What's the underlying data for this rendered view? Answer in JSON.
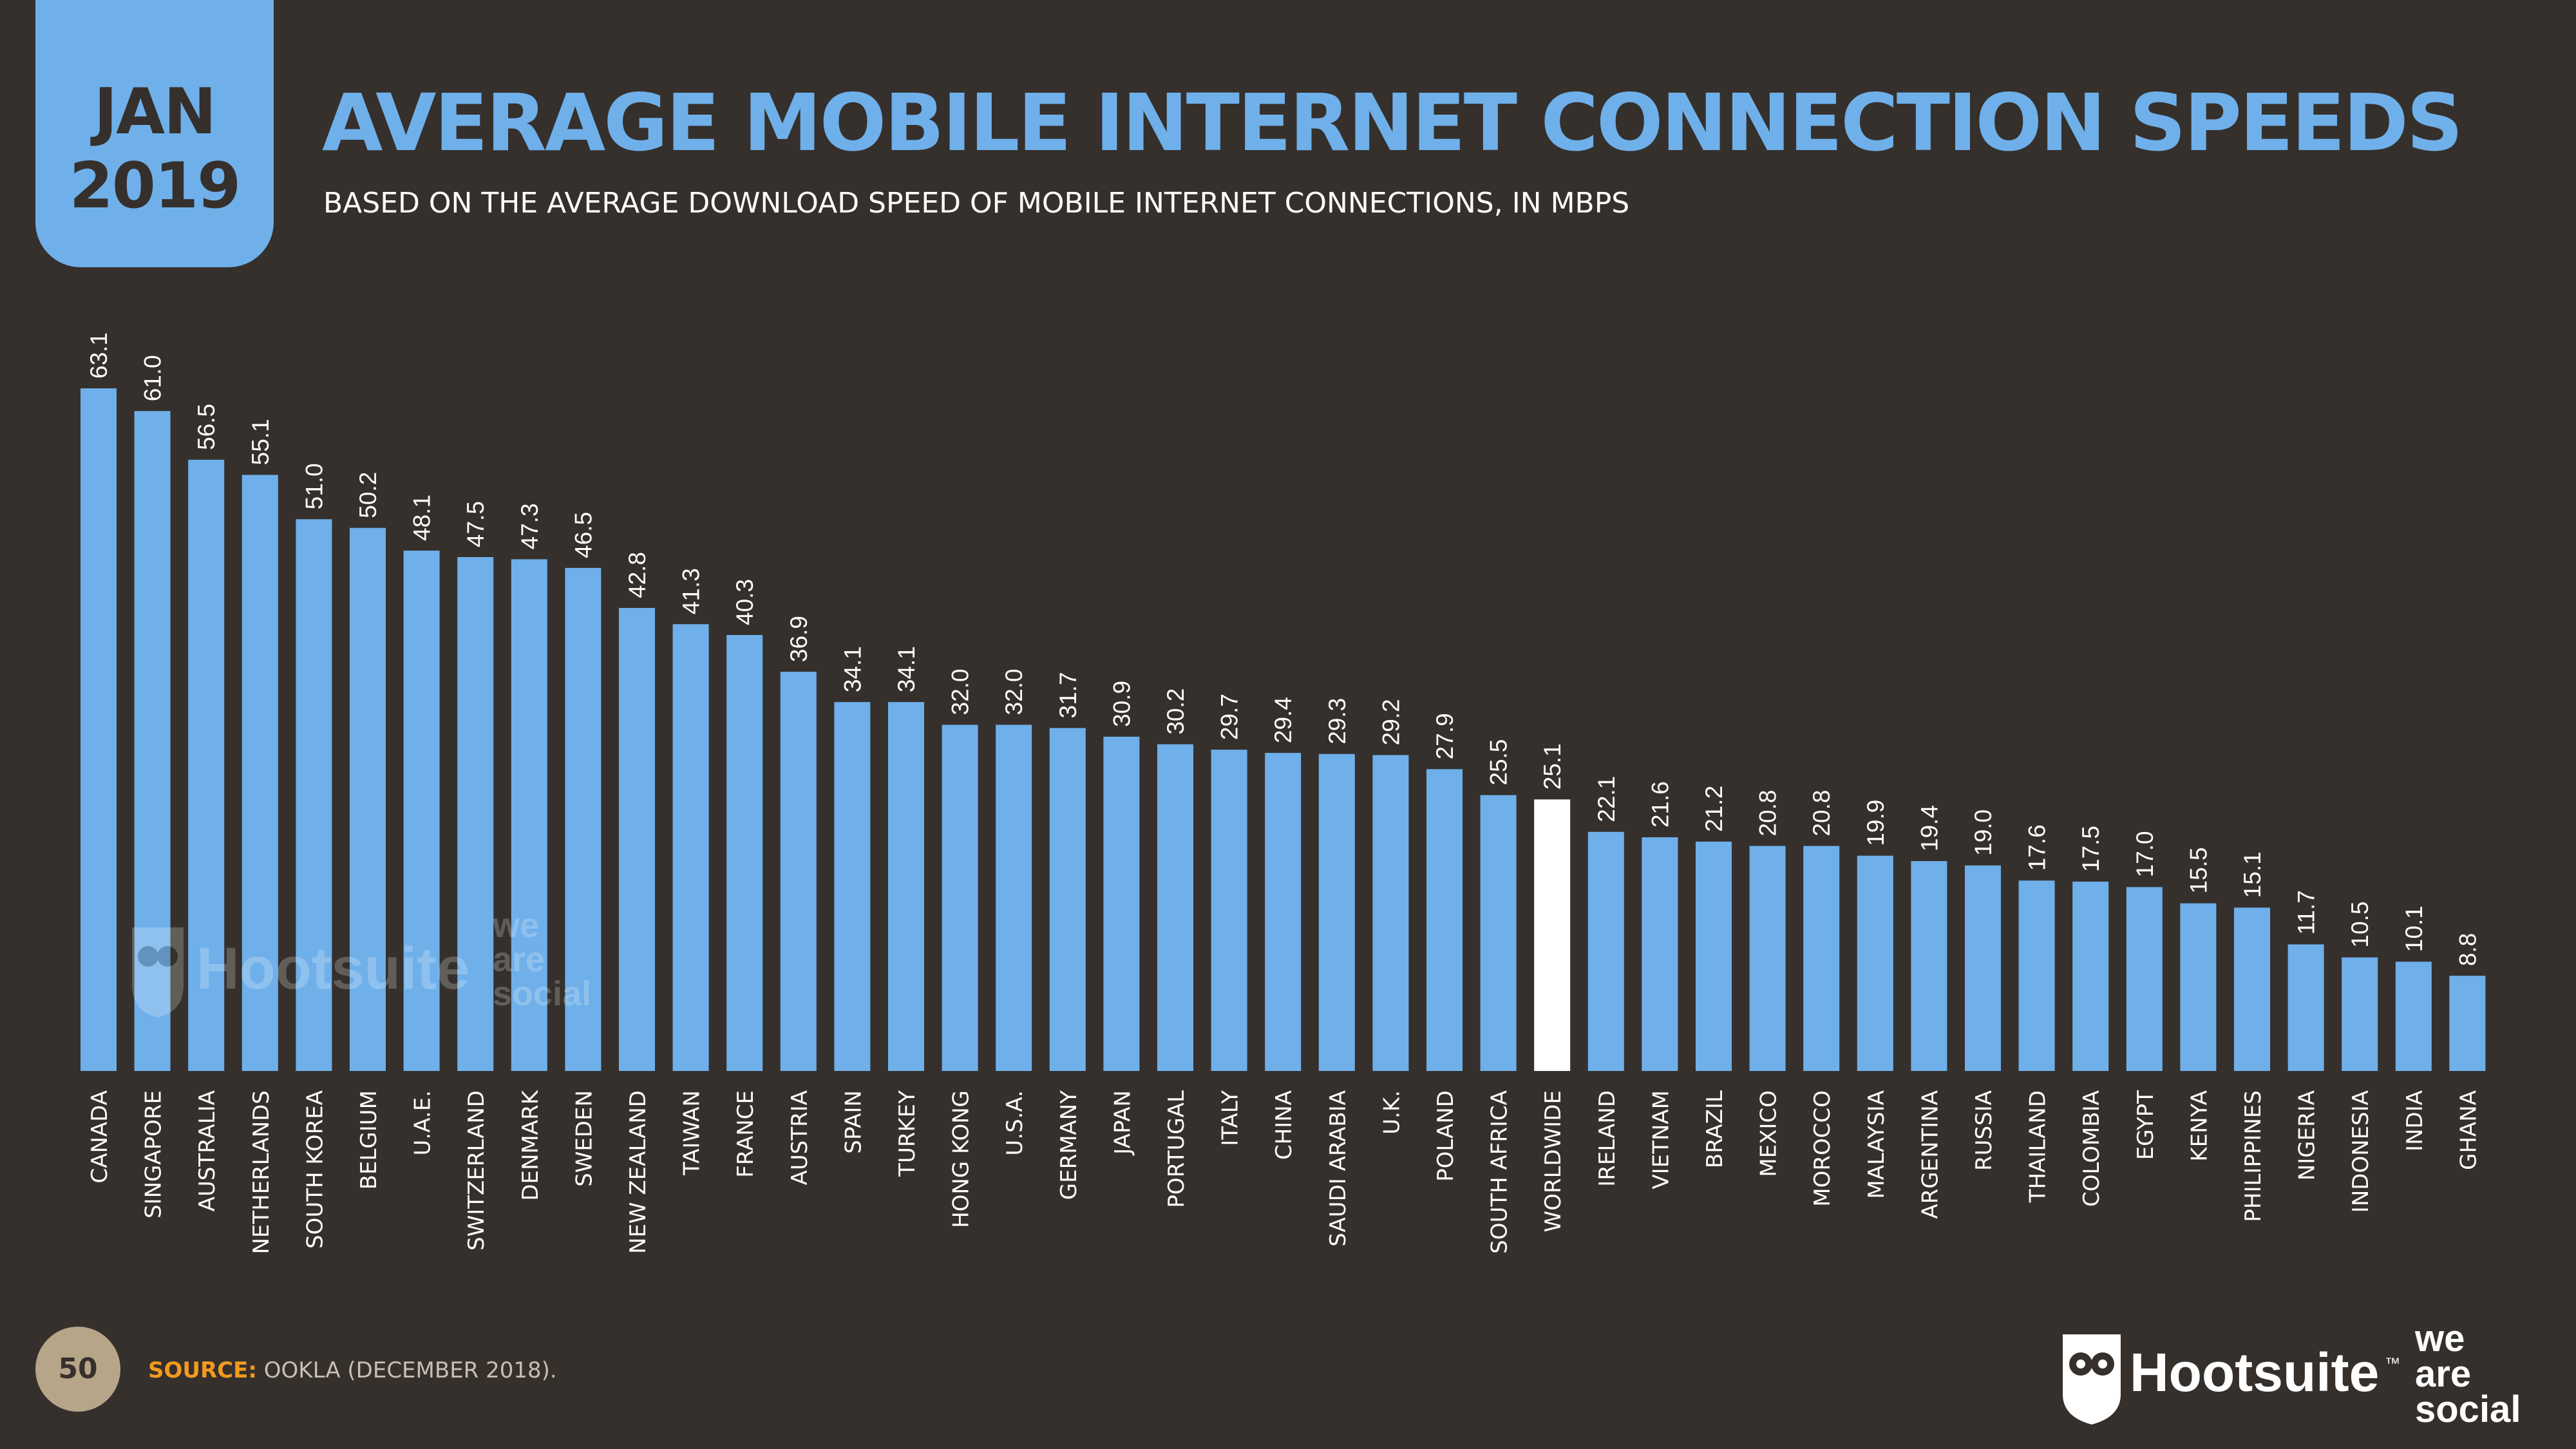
{
  "header": {
    "month": "JAN",
    "year": "2019",
    "title": "AVERAGE MOBILE INTERNET CONNECTION SPEEDS",
    "subtitle": "BASED ON THE AVERAGE DOWNLOAD SPEED OF MOBILE INTERNET CONNECTIONS, IN MBPS"
  },
  "footer": {
    "page_number": "50",
    "source_label": "SOURCE:",
    "source_text": "OOKLA (DECEMBER 2018).",
    "brand_hootsuite": "Hootsuite",
    "brand_tm": "™",
    "brand_was_1": "we",
    "brand_was_2": "are",
    "brand_was_3": "social"
  },
  "colors": {
    "background": "#35302c",
    "bar": "#6fb0ea",
    "highlight_bar": "#ffffff",
    "accent_orange": "#f39a1f",
    "title": "#6fb0ea"
  },
  "chart_data": {
    "type": "bar",
    "categories": [
      "CANADA",
      "SINGAPORE",
      "AUSTRALIA",
      "NETHERLANDS",
      "SOUTH KOREA",
      "BELGIUM",
      "U.A.E.",
      "SWITZERLAND",
      "DENMARK",
      "SWEDEN",
      "NEW ZEALAND",
      "TAIWAN",
      "FRANCE",
      "AUSTRIA",
      "SPAIN",
      "TURKEY",
      "HONG KONG",
      "U.S.A.",
      "GERMANY",
      "JAPAN",
      "PORTUGAL",
      "ITALY",
      "CHINA",
      "SAUDI ARABIA",
      "U.K.",
      "POLAND",
      "SOUTH AFRICA",
      "WORLDWIDE",
      "IRELAND",
      "VIETNAM",
      "BRAZIL",
      "MEXICO",
      "MOROCCO",
      "MALAYSIA",
      "ARGENTINA",
      "RUSSIA",
      "THAILAND",
      "COLOMBIA",
      "EGYPT",
      "KENYA",
      "PHILIPPINES",
      "NIGERIA",
      "INDONESIA",
      "INDIA",
      "GHANA"
    ],
    "values": [
      63.1,
      61.0,
      56.5,
      55.1,
      51.0,
      50.2,
      48.1,
      47.5,
      47.3,
      46.5,
      42.8,
      41.3,
      40.3,
      36.9,
      34.1,
      34.1,
      32.0,
      32.0,
      31.7,
      30.9,
      30.2,
      29.7,
      29.4,
      29.3,
      29.2,
      27.9,
      25.5,
      25.1,
      22.1,
      21.6,
      21.2,
      20.8,
      20.8,
      19.9,
      19.4,
      19.0,
      17.6,
      17.5,
      17.0,
      15.5,
      15.1,
      11.7,
      10.5,
      10.1,
      8.8
    ],
    "value_labels": [
      "63.1",
      "61.0",
      "56.5",
      "55.1",
      "51.0",
      "50.2",
      "48.1",
      "47.5",
      "47.3",
      "46.5",
      "42.8",
      "41.3",
      "40.3",
      "36.9",
      "34.1",
      "34.1",
      "32.0",
      "32.0",
      "31.7",
      "30.9",
      "30.2",
      "29.7",
      "29.4",
      "29.3",
      "29.2",
      "27.9",
      "25.5",
      "25.1",
      "22.1",
      "21.6",
      "21.2",
      "20.8",
      "20.8",
      "19.9",
      "19.4",
      "19.0",
      "17.6",
      "17.5",
      "17.0",
      "15.5",
      "15.1",
      "11.7",
      "10.5",
      "10.1",
      "8.8"
    ],
    "highlight_category": "WORLDWIDE",
    "ylim": [
      0,
      63.1
    ],
    "grid": false,
    "legend": "none"
  }
}
